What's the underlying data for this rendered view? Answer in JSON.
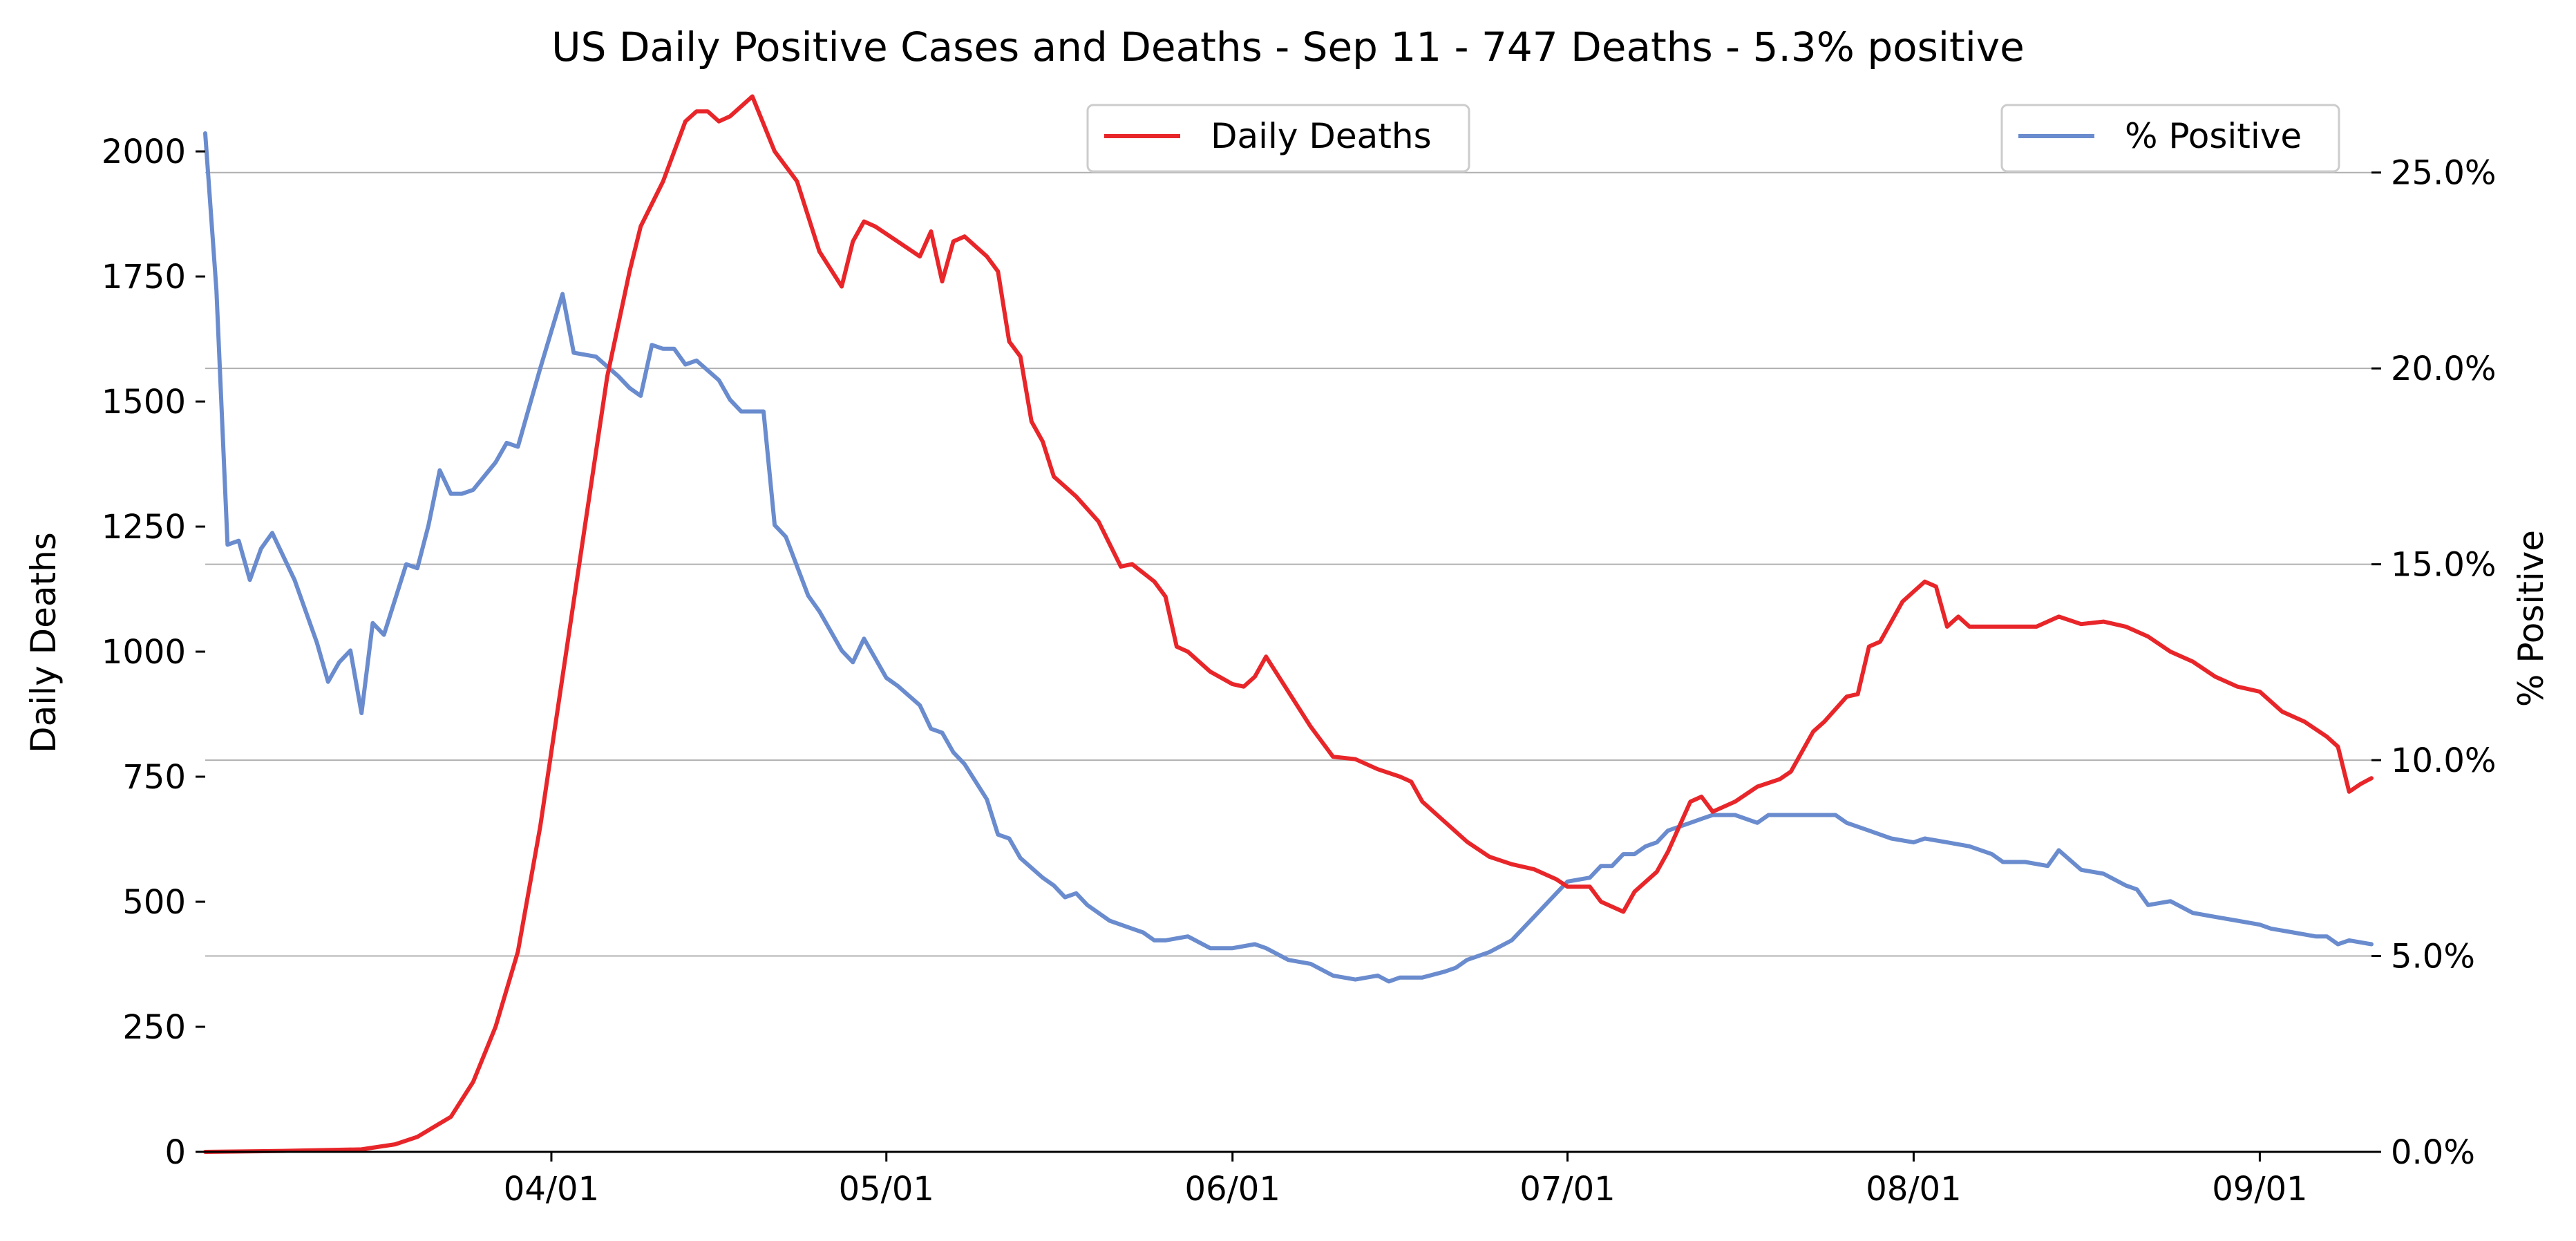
{
  "chart_data": {
    "type": "line",
    "title": "US Daily Positive Cases and Deaths - Sep 11 - 747 Deaths - 5.3% positive",
    "xlabel": "",
    "ylabel_left": "Daily Deaths",
    "ylabel_right": "% Positive",
    "x_range": [
      "2020-03-01",
      "2020-09-11"
    ],
    "ylim_left": [
      0,
      2130
    ],
    "ylim_right": [
      0.0,
      27.2
    ],
    "y_ticks_left": [
      0,
      250,
      500,
      750,
      1000,
      1250,
      1500,
      1750,
      2000
    ],
    "y_ticks_right": [
      "0.0%",
      "5.0%",
      "10.0%",
      "15.0%",
      "20.0%",
      "25.0%"
    ],
    "y_ticks_right_values": [
      0,
      5,
      10,
      15,
      20,
      25
    ],
    "x_ticks": [
      "04/01",
      "05/01",
      "06/01",
      "07/01",
      "08/01",
      "09/01"
    ],
    "x_ticks_dates": [
      "2020-04-01",
      "2020-05-01",
      "2020-06-01",
      "2020-07-01",
      "2020-08-01",
      "2020-09-01"
    ],
    "grid": "horizontal (right axis)",
    "legend": [
      {
        "name": "Daily Deaths",
        "placement": "top-center",
        "color": "#e8262a"
      },
      {
        "name": "% Positive",
        "placement": "top-right",
        "color": "#6a8cce"
      }
    ],
    "series": [
      {
        "name": "Daily Deaths",
        "axis": "left",
        "color": "#e8262a",
        "points": [
          [
            "2020-03-01",
            0
          ],
          [
            "2020-03-08",
            2
          ],
          [
            "2020-03-15",
            5
          ],
          [
            "2020-03-18",
            15
          ],
          [
            "2020-03-20",
            30
          ],
          [
            "2020-03-23",
            70
          ],
          [
            "2020-03-25",
            140
          ],
          [
            "2020-03-27",
            250
          ],
          [
            "2020-03-29",
            400
          ],
          [
            "2020-03-31",
            650
          ],
          [
            "2020-04-02",
            950
          ],
          [
            "2020-04-04",
            1250
          ],
          [
            "2020-04-06",
            1550
          ],
          [
            "2020-04-08",
            1760
          ],
          [
            "2020-04-09",
            1850
          ],
          [
            "2020-04-11",
            1940
          ],
          [
            "2020-04-13",
            2060
          ],
          [
            "2020-04-14",
            2080
          ],
          [
            "2020-04-15",
            2080
          ],
          [
            "2020-04-16",
            2060
          ],
          [
            "2020-04-17",
            2070
          ],
          [
            "2020-04-19",
            2110
          ],
          [
            "2020-04-21",
            2000
          ],
          [
            "2020-04-23",
            1940
          ],
          [
            "2020-04-25",
            1800
          ],
          [
            "2020-04-27",
            1730
          ],
          [
            "2020-04-28",
            1820
          ],
          [
            "2020-04-29",
            1860
          ],
          [
            "2020-04-30",
            1850
          ],
          [
            "2020-05-02",
            1820
          ],
          [
            "2020-05-04",
            1790
          ],
          [
            "2020-05-05",
            1840
          ],
          [
            "2020-05-06",
            1740
          ],
          [
            "2020-05-07",
            1820
          ],
          [
            "2020-05-08",
            1830
          ],
          [
            "2020-05-10",
            1790
          ],
          [
            "2020-05-11",
            1760
          ],
          [
            "2020-05-12",
            1620
          ],
          [
            "2020-05-13",
            1590
          ],
          [
            "2020-05-14",
            1460
          ],
          [
            "2020-05-15",
            1420
          ],
          [
            "2020-05-16",
            1350
          ],
          [
            "2020-05-18",
            1310
          ],
          [
            "2020-05-20",
            1260
          ],
          [
            "2020-05-22",
            1170
          ],
          [
            "2020-05-23",
            1175
          ],
          [
            "2020-05-25",
            1140
          ],
          [
            "2020-05-26",
            1110
          ],
          [
            "2020-05-27",
            1010
          ],
          [
            "2020-05-28",
            1000
          ],
          [
            "2020-05-30",
            960
          ],
          [
            "2020-06-01",
            935
          ],
          [
            "2020-06-02",
            930
          ],
          [
            "2020-06-03",
            950
          ],
          [
            "2020-06-04",
            990
          ],
          [
            "2020-06-06",
            920
          ],
          [
            "2020-06-08",
            850
          ],
          [
            "2020-06-10",
            790
          ],
          [
            "2020-06-12",
            785
          ],
          [
            "2020-06-14",
            765
          ],
          [
            "2020-06-16",
            750
          ],
          [
            "2020-06-17",
            740
          ],
          [
            "2020-06-18",
            700
          ],
          [
            "2020-06-20",
            660
          ],
          [
            "2020-06-22",
            620
          ],
          [
            "2020-06-24",
            590
          ],
          [
            "2020-06-26",
            575
          ],
          [
            "2020-06-28",
            565
          ],
          [
            "2020-06-30",
            545
          ],
          [
            "2020-07-01",
            530
          ],
          [
            "2020-07-03",
            530
          ],
          [
            "2020-07-04",
            500
          ],
          [
            "2020-07-06",
            480
          ],
          [
            "2020-07-07",
            520
          ],
          [
            "2020-07-09",
            560
          ],
          [
            "2020-07-10",
            600
          ],
          [
            "2020-07-12",
            700
          ],
          [
            "2020-07-13",
            710
          ],
          [
            "2020-07-14",
            680
          ],
          [
            "2020-07-16",
            700
          ],
          [
            "2020-07-18",
            730
          ],
          [
            "2020-07-20",
            745
          ],
          [
            "2020-07-21",
            760
          ],
          [
            "2020-07-23",
            840
          ],
          [
            "2020-07-24",
            860
          ],
          [
            "2020-07-26",
            910
          ],
          [
            "2020-07-27",
            915
          ],
          [
            "2020-07-28",
            1010
          ],
          [
            "2020-07-29",
            1020
          ],
          [
            "2020-07-31",
            1100
          ],
          [
            "2020-08-01",
            1120
          ],
          [
            "2020-08-02",
            1140
          ],
          [
            "2020-08-03",
            1130
          ],
          [
            "2020-08-04",
            1050
          ],
          [
            "2020-08-05",
            1070
          ],
          [
            "2020-08-06",
            1050
          ],
          [
            "2020-08-08",
            1050
          ],
          [
            "2020-08-10",
            1050
          ],
          [
            "2020-08-12",
            1050
          ],
          [
            "2020-08-14",
            1070
          ],
          [
            "2020-08-16",
            1055
          ],
          [
            "2020-08-18",
            1060
          ],
          [
            "2020-08-20",
            1050
          ],
          [
            "2020-08-22",
            1030
          ],
          [
            "2020-08-24",
            1000
          ],
          [
            "2020-08-26",
            980
          ],
          [
            "2020-08-28",
            950
          ],
          [
            "2020-08-30",
            930
          ],
          [
            "2020-09-01",
            920
          ],
          [
            "2020-09-03",
            880
          ],
          [
            "2020-09-05",
            860
          ],
          [
            "2020-09-07",
            830
          ],
          [
            "2020-09-08",
            810
          ],
          [
            "2020-09-09",
            720
          ],
          [
            "2020-09-10",
            735
          ],
          [
            "2020-09-11",
            747
          ]
        ]
      },
      {
        "name": "% Positive",
        "axis": "right",
        "color": "#6a8cce",
        "points": [
          [
            "2020-03-01",
            26.0
          ],
          [
            "2020-03-02",
            22.0
          ],
          [
            "2020-03-03",
            15.5
          ],
          [
            "2020-03-04",
            15.6
          ],
          [
            "2020-03-05",
            14.6
          ],
          [
            "2020-03-06",
            15.4
          ],
          [
            "2020-03-07",
            15.8
          ],
          [
            "2020-03-09",
            14.6
          ],
          [
            "2020-03-11",
            13.0
          ],
          [
            "2020-03-12",
            12.0
          ],
          [
            "2020-03-13",
            12.5
          ],
          [
            "2020-03-14",
            12.8
          ],
          [
            "2020-03-15",
            11.2
          ],
          [
            "2020-03-16",
            13.5
          ],
          [
            "2020-03-17",
            13.2
          ],
          [
            "2020-03-19",
            15.0
          ],
          [
            "2020-03-20",
            14.9
          ],
          [
            "2020-03-21",
            16.0
          ],
          [
            "2020-03-22",
            17.4
          ],
          [
            "2020-03-23",
            16.8
          ],
          [
            "2020-03-24",
            16.8
          ],
          [
            "2020-03-25",
            16.9
          ],
          [
            "2020-03-27",
            17.6
          ],
          [
            "2020-03-28",
            18.1
          ],
          [
            "2020-03-29",
            18.0
          ],
          [
            "2020-03-30",
            19.0
          ],
          [
            "2020-03-31",
            20.0
          ],
          [
            "2020-04-02",
            21.9
          ],
          [
            "2020-04-03",
            20.4
          ],
          [
            "2020-04-05",
            20.3
          ],
          [
            "2020-04-07",
            19.8
          ],
          [
            "2020-04-08",
            19.5
          ],
          [
            "2020-04-09",
            19.3
          ],
          [
            "2020-04-10",
            20.6
          ],
          [
            "2020-04-11",
            20.5
          ],
          [
            "2020-04-12",
            20.5
          ],
          [
            "2020-04-13",
            20.1
          ],
          [
            "2020-04-14",
            20.2
          ],
          [
            "2020-04-16",
            19.7
          ],
          [
            "2020-04-17",
            19.2
          ],
          [
            "2020-04-18",
            18.9
          ],
          [
            "2020-04-19",
            18.9
          ],
          [
            "2020-04-20",
            18.9
          ],
          [
            "2020-04-21",
            16.0
          ],
          [
            "2020-04-22",
            15.7
          ],
          [
            "2020-04-24",
            14.2
          ],
          [
            "2020-04-25",
            13.8
          ],
          [
            "2020-04-27",
            12.8
          ],
          [
            "2020-04-28",
            12.5
          ],
          [
            "2020-04-29",
            13.1
          ],
          [
            "2020-04-30",
            12.6
          ],
          [
            "2020-05-01",
            12.1
          ],
          [
            "2020-05-02",
            11.9
          ],
          [
            "2020-05-04",
            11.4
          ],
          [
            "2020-05-05",
            10.8
          ],
          [
            "2020-05-06",
            10.7
          ],
          [
            "2020-05-07",
            10.2
          ],
          [
            "2020-05-08",
            9.9
          ],
          [
            "2020-05-10",
            9.0
          ],
          [
            "2020-05-11",
            8.1
          ],
          [
            "2020-05-12",
            8.0
          ],
          [
            "2020-05-13",
            7.5
          ],
          [
            "2020-05-15",
            7.0
          ],
          [
            "2020-05-16",
            6.8
          ],
          [
            "2020-05-17",
            6.5
          ],
          [
            "2020-05-18",
            6.6
          ],
          [
            "2020-05-19",
            6.3
          ],
          [
            "2020-05-21",
            5.9
          ],
          [
            "2020-05-23",
            5.7
          ],
          [
            "2020-05-24",
            5.6
          ],
          [
            "2020-05-25",
            5.4
          ],
          [
            "2020-05-26",
            5.4
          ],
          [
            "2020-05-28",
            5.5
          ],
          [
            "2020-05-30",
            5.2
          ],
          [
            "2020-06-01",
            5.2
          ],
          [
            "2020-06-03",
            5.3
          ],
          [
            "2020-06-04",
            5.2
          ],
          [
            "2020-06-06",
            4.9
          ],
          [
            "2020-06-08",
            4.8
          ],
          [
            "2020-06-10",
            4.5
          ],
          [
            "2020-06-12",
            4.4
          ],
          [
            "2020-06-14",
            4.5
          ],
          [
            "2020-06-15",
            4.35
          ],
          [
            "2020-06-16",
            4.45
          ],
          [
            "2020-06-18",
            4.45
          ],
          [
            "2020-06-20",
            4.6
          ],
          [
            "2020-06-21",
            4.7
          ],
          [
            "2020-06-22",
            4.9
          ],
          [
            "2020-06-24",
            5.1
          ],
          [
            "2020-06-26",
            5.4
          ],
          [
            "2020-06-28",
            6.0
          ],
          [
            "2020-06-30",
            6.6
          ],
          [
            "2020-07-01",
            6.9
          ],
          [
            "2020-07-03",
            7.0
          ],
          [
            "2020-07-04",
            7.3
          ],
          [
            "2020-07-05",
            7.3
          ],
          [
            "2020-07-06",
            7.6
          ],
          [
            "2020-07-07",
            7.6
          ],
          [
            "2020-07-08",
            7.8
          ],
          [
            "2020-07-09",
            7.9
          ],
          [
            "2020-07-10",
            8.2
          ],
          [
            "2020-07-12",
            8.4
          ],
          [
            "2020-07-13",
            8.5
          ],
          [
            "2020-07-14",
            8.6
          ],
          [
            "2020-07-16",
            8.6
          ],
          [
            "2020-07-18",
            8.4
          ],
          [
            "2020-07-19",
            8.6
          ],
          [
            "2020-07-21",
            8.6
          ],
          [
            "2020-07-23",
            8.6
          ],
          [
            "2020-07-25",
            8.6
          ],
          [
            "2020-07-26",
            8.4
          ],
          [
            "2020-07-28",
            8.2
          ],
          [
            "2020-07-30",
            8.0
          ],
          [
            "2020-08-01",
            7.9
          ],
          [
            "2020-08-02",
            8.0
          ],
          [
            "2020-08-04",
            7.9
          ],
          [
            "2020-08-06",
            7.8
          ],
          [
            "2020-08-08",
            7.6
          ],
          [
            "2020-08-09",
            7.4
          ],
          [
            "2020-08-11",
            7.4
          ],
          [
            "2020-08-13",
            7.3
          ],
          [
            "2020-08-14",
            7.7
          ],
          [
            "2020-08-16",
            7.2
          ],
          [
            "2020-08-18",
            7.1
          ],
          [
            "2020-08-20",
            6.8
          ],
          [
            "2020-08-21",
            6.7
          ],
          [
            "2020-08-22",
            6.3
          ],
          [
            "2020-08-24",
            6.4
          ],
          [
            "2020-08-26",
            6.1
          ],
          [
            "2020-08-28",
            6.0
          ],
          [
            "2020-08-30",
            5.9
          ],
          [
            "2020-09-01",
            5.8
          ],
          [
            "2020-09-02",
            5.7
          ],
          [
            "2020-09-04",
            5.6
          ],
          [
            "2020-09-06",
            5.5
          ],
          [
            "2020-09-07",
            5.5
          ],
          [
            "2020-09-08",
            5.3
          ],
          [
            "2020-09-09",
            5.4
          ],
          [
            "2020-09-11",
            5.3
          ]
        ]
      }
    ]
  }
}
